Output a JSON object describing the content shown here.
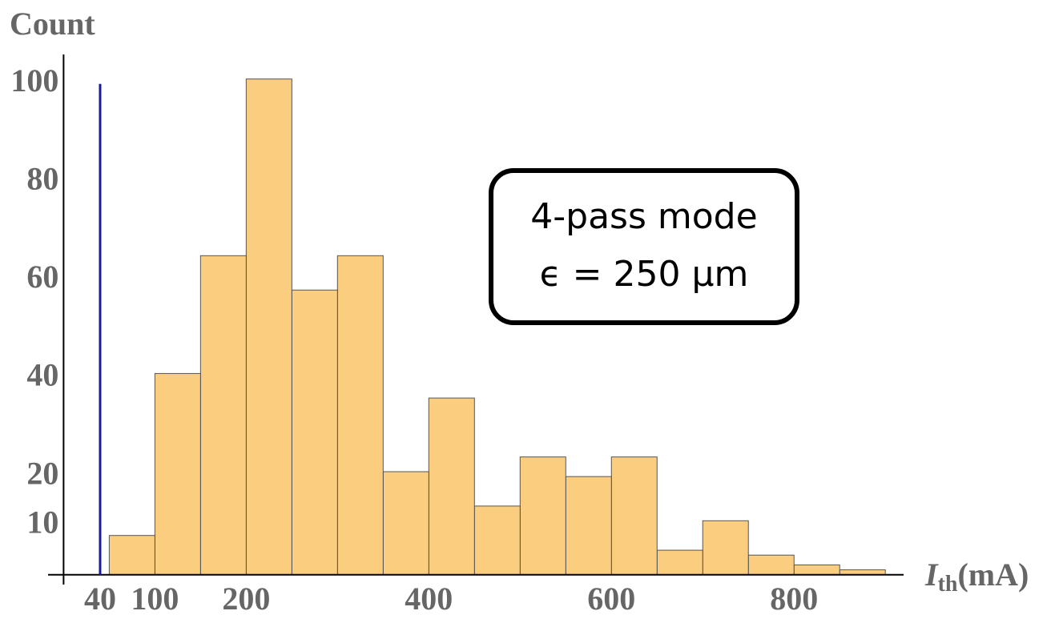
{
  "chart_data": {
    "type": "histogram",
    "ylabel": "Count",
    "xlabel": {
      "symbol": "I",
      "subscript": "th",
      "unit": "(mA)"
    },
    "bins": [
      50,
      100,
      150,
      200,
      250,
      300,
      350,
      400,
      450,
      500,
      550,
      600,
      650,
      700,
      750,
      800,
      850,
      900
    ],
    "values": [
      8,
      41,
      65,
      101,
      58,
      65,
      21,
      36,
      14,
      24,
      20,
      24,
      5,
      11,
      4,
      2,
      1
    ],
    "color": "#fbcd7f",
    "xlim": [
      -17,
      920
    ],
    "xticks": [
      40,
      100,
      200,
      400,
      600,
      800
    ],
    "ylim": [
      -2,
      106
    ],
    "yticks": [
      10,
      20,
      40,
      60,
      80,
      100
    ],
    "vline": {
      "x": 40,
      "y_end": 100,
      "color": "#1a1aa0"
    },
    "annotation": [
      "4-pass mode",
      "ϵ = 250 μm"
    ]
  }
}
